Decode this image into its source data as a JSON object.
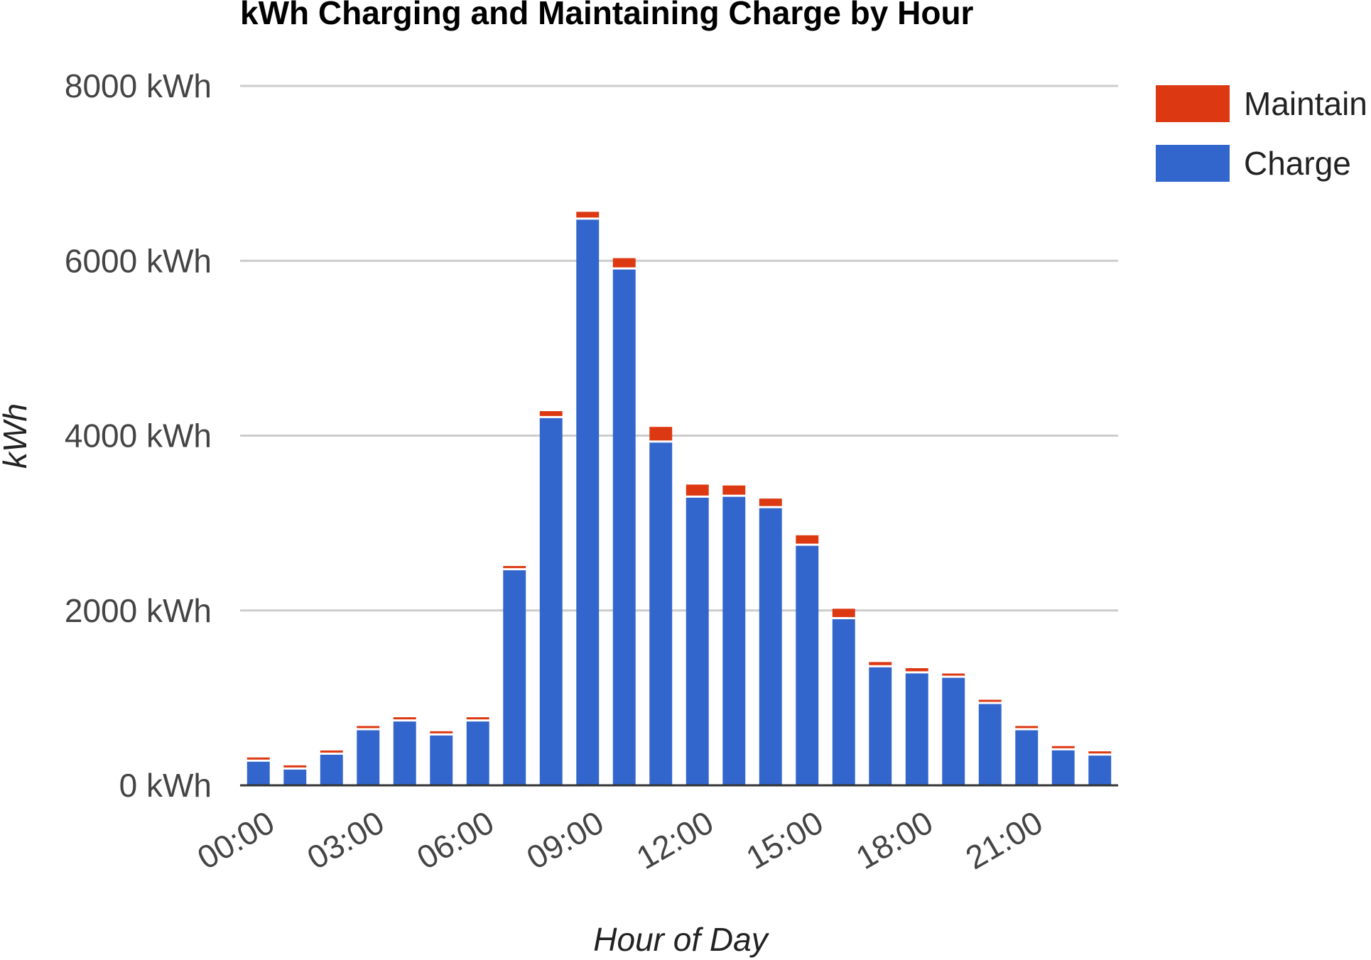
{
  "chart_data": {
    "type": "bar",
    "stacked": true,
    "title": "kWh Charging and Maintaining Charge by Hour",
    "xlabel": "Hour of Day",
    "ylabel": "kWh",
    "ylim": [
      0,
      8000
    ],
    "y_ticks": [
      0,
      2000,
      4000,
      6000,
      8000
    ],
    "y_tick_labels": [
      "0 kWh",
      "2000 kWh",
      "4000 kWh",
      "6000 kWh",
      "8000 kWh"
    ],
    "grid": true,
    "legend_position": "right",
    "categories": [
      "00:00",
      "01:00",
      "02:00",
      "03:00",
      "04:00",
      "05:00",
      "06:00",
      "07:00",
      "08:00",
      "09:00",
      "10:00",
      "11:00",
      "12:00",
      "13:00",
      "14:00",
      "15:00",
      "16:00",
      "17:00",
      "18:00",
      "19:00",
      "20:00",
      "21:00",
      "22:00",
      "23:00"
    ],
    "x_tick_labels": [
      "00:00",
      "03:00",
      "06:00",
      "09:00",
      "12:00",
      "15:00",
      "18:00",
      "21:00"
    ],
    "x_tick_indices": [
      0,
      3,
      6,
      9,
      12,
      15,
      18,
      21
    ],
    "series": [
      {
        "name": "Charge",
        "color": "#3366cc",
        "values": [
          270,
          180,
          350,
          630,
          730,
          570,
          730,
          2460,
          4200,
          6470,
          5900,
          3920,
          3290,
          3300,
          3170,
          2740,
          1900,
          1350,
          1280,
          1230,
          930,
          630,
          400,
          340
        ]
      },
      {
        "name": "Maintain",
        "color": "#dc3912",
        "values": [
          30,
          20,
          30,
          30,
          30,
          20,
          40,
          40,
          80,
          90,
          130,
          180,
          150,
          130,
          110,
          120,
          120,
          60,
          60,
          30,
          30,
          30,
          30,
          30
        ]
      }
    ],
    "legend": [
      {
        "name": "Maintain",
        "color": "#dc3912"
      },
      {
        "name": "Charge",
        "color": "#3366cc"
      }
    ],
    "gridline_color": "#cccccc",
    "baseline_color": "#333333"
  }
}
